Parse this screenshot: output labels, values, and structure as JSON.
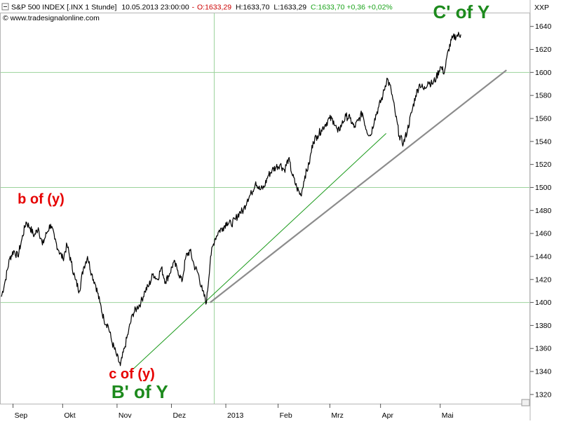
{
  "header": {
    "symbol": "S&P 500 INDEX [.INX  1 Stunde]",
    "datetime": "10.05.2013 23:00:00",
    "open": "O:1633,29",
    "high": "H:1633,70",
    "low": "L:1633,29",
    "close": "C:1633,70 +0,36 +0,02%",
    "watermark": "© www.tradesignalonline.com",
    "axis_label": "XXP"
  },
  "colors": {
    "price_line": "#000000",
    "grid": "#9bd29b",
    "trendline_green": "#1a9a1a",
    "trendline_gray": "#8c8c8c",
    "label_red": "#e60000",
    "label_green": "#1d8a1d",
    "open_red": "#cc0000",
    "close_green": "#1aa31a"
  },
  "chart_data": {
    "type": "line",
    "title": "S&P 500 INDEX [.INX  1 Stunde]",
    "ylim": [
      1312,
      1652
    ],
    "y_ticks": [
      1320,
      1340,
      1360,
      1380,
      1400,
      1420,
      1440,
      1460,
      1480,
      1500,
      1520,
      1540,
      1560,
      1580,
      1600,
      1620,
      1640
    ],
    "x_labels": [
      "Sep",
      "Okt",
      "Nov",
      "Dez",
      "2013",
      "Feb",
      "Mrz",
      "Apr",
      "Mai"
    ],
    "grid_levels": [
      1400,
      1500,
      1600
    ],
    "series": [
      {
        "values": [
          1405,
          1420,
          1438,
          1445,
          1440,
          1455,
          1470,
          1465,
          1458,
          1465,
          1450,
          1460,
          1468,
          1455,
          1445,
          1438,
          1450,
          1435,
          1420,
          1410,
          1430,
          1440,
          1425,
          1415,
          1400,
          1385,
          1380,
          1365,
          1355,
          1345,
          1360,
          1375,
          1390,
          1395,
          1400,
          1410,
          1415,
          1425,
          1420,
          1430,
          1418,
          1425,
          1435,
          1428,
          1418,
          1440,
          1445,
          1432,
          1425,
          1410,
          1400,
          1440,
          1455,
          1462,
          1465,
          1470,
          1468,
          1472,
          1478,
          1480,
          1490,
          1495,
          1505,
          1498,
          1500,
          1510,
          1515,
          1518,
          1520,
          1515,
          1525,
          1510,
          1500,
          1493,
          1510,
          1520,
          1540,
          1545,
          1550,
          1555,
          1560,
          1558,
          1548,
          1555,
          1562,
          1560,
          1552,
          1558,
          1565,
          1550,
          1545,
          1560,
          1570,
          1580,
          1595,
          1585,
          1565,
          1545,
          1538,
          1550,
          1565,
          1580,
          1590,
          1585,
          1592,
          1590,
          1595,
          1605,
          1600,
          1620,
          1630,
          1632,
          1633
        ]
      }
    ],
    "trendlines": [
      {
        "name": "green",
        "from": [
          0.2493,
          1342
        ],
        "to": [
          0.7286,
          1547
        ]
      },
      {
        "name": "gray",
        "from": [
          0.3954,
          1400
        ],
        "to": [
          0.9565,
          1602
        ]
      }
    ],
    "annotations": [
      {
        "text": "b of (y)",
        "color": "red",
        "x": 0.075,
        "y": 1486
      },
      {
        "text": "c of (y)",
        "color": "red",
        "x": 0.247,
        "y": 1334
      },
      {
        "text": "B' of Y",
        "color": "green",
        "x": 0.262,
        "y": 1317
      },
      {
        "text": "C' of Y",
        "color": "green",
        "x": 0.871,
        "y": 1647
      }
    ]
  }
}
